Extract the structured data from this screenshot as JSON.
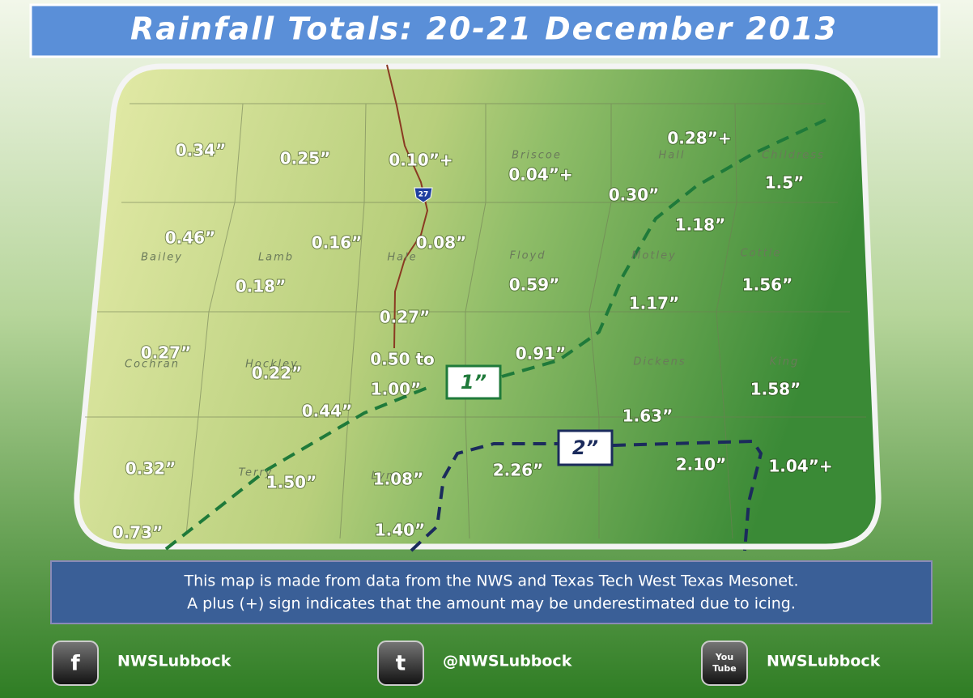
{
  "title": "Rainfall Totals: 20-21 December 2013",
  "map": {
    "highway": "27",
    "counties": [
      "Briscoe",
      "Hall",
      "Childress",
      "Bailey",
      "Lamb",
      "Hale",
      "Floyd",
      "Motley",
      "Cottle",
      "Cochran",
      "Hockley",
      "Dickens",
      "King",
      "Terry",
      "Lynn"
    ],
    "rainfall": [
      "0.34”",
      "0.25”",
      "0.10”+",
      "0.04”+",
      "0.28”+",
      "0.30”",
      "1.5”",
      "1.18”",
      "0.46”",
      "0.16”",
      "0.08”",
      "0.59”",
      "1.17”",
      "1.56”",
      "0.18”",
      "0.27”",
      "0.27”",
      "0.22”",
      "0.50 to",
      "1.00”",
      "0.91”",
      "1.58”",
      "1.63”",
      "0.44”",
      "0.32”",
      "1.50”",
      "1.08”",
      "2.26”",
      "2.10”",
      "1.04”+",
      "0.73”",
      "1.40”"
    ],
    "contours": [
      "1”",
      "2”"
    ]
  },
  "footer": {
    "lines": [
      "This map is made from data from the NWS and Texas Tech West Texas Mesonet.",
      "A plus (+) sign indicates that the amount may be underestimated due to icing."
    ]
  },
  "social": [
    {
      "icon": "f",
      "handle": "NWSLubbock"
    },
    {
      "icon": "t",
      "handle": "@NWSLubbock"
    },
    {
      "icon": [
        "You",
        "Tube"
      ],
      "handle": "NWSLubbock"
    }
  ]
}
